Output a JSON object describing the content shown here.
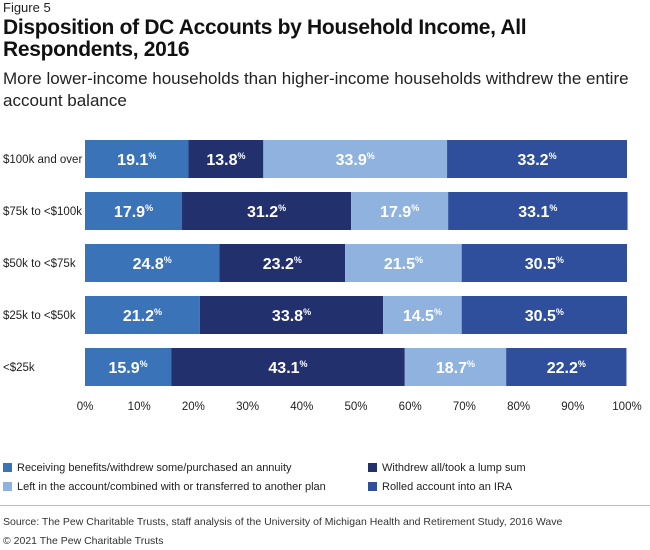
{
  "figure_label": "Figure 5",
  "title": "Disposition of DC Accounts by Household Income, All Respondents, 2016",
  "subtitle": "More lower-income households than higher-income households withdrew the entire account balance",
  "colors": {
    "benefits": "#3b73b9",
    "withdraw": "#22306e",
    "left": "#8fb3de",
    "rolled": "#2f4f9d"
  },
  "chart_data": {
    "type": "bar",
    "orientation": "horizontal",
    "stacked": true,
    "categories": [
      "$100k and over",
      "$75k to <$100k",
      "$50k to <$75k",
      "$25k to <$50k",
      "<$25k"
    ],
    "series": [
      {
        "key": "benefits",
        "name": "Receiving benefits/withdrew some/purchased an annuity",
        "values": [
          19.1,
          17.9,
          24.8,
          21.2,
          15.9
        ]
      },
      {
        "key": "withdraw",
        "name": "Withdrew all/took a lump sum",
        "values": [
          13.8,
          31.2,
          23.2,
          33.8,
          43.1
        ]
      },
      {
        "key": "left",
        "name": "Left in the account/combined with or transferred to another plan",
        "values": [
          33.9,
          17.9,
          21.5,
          14.5,
          18.7
        ]
      },
      {
        "key": "rolled",
        "name": "Rolled account into an IRA",
        "values": [
          33.2,
          33.1,
          30.5,
          30.5,
          22.2
        ]
      }
    ],
    "value_suffix": "%",
    "x_ticks": [
      "0%",
      "10%",
      "20%",
      "30%",
      "40%",
      "50%",
      "60%",
      "70%",
      "80%",
      "90%",
      "100%"
    ],
    "xlim": [
      0,
      100
    ]
  },
  "source": "Source: The Pew Charitable Trusts, staff analysis of the University of Michigan Health and Retirement Study, 2016 Wave",
  "copyright": "© 2021 The Pew Charitable Trusts"
}
